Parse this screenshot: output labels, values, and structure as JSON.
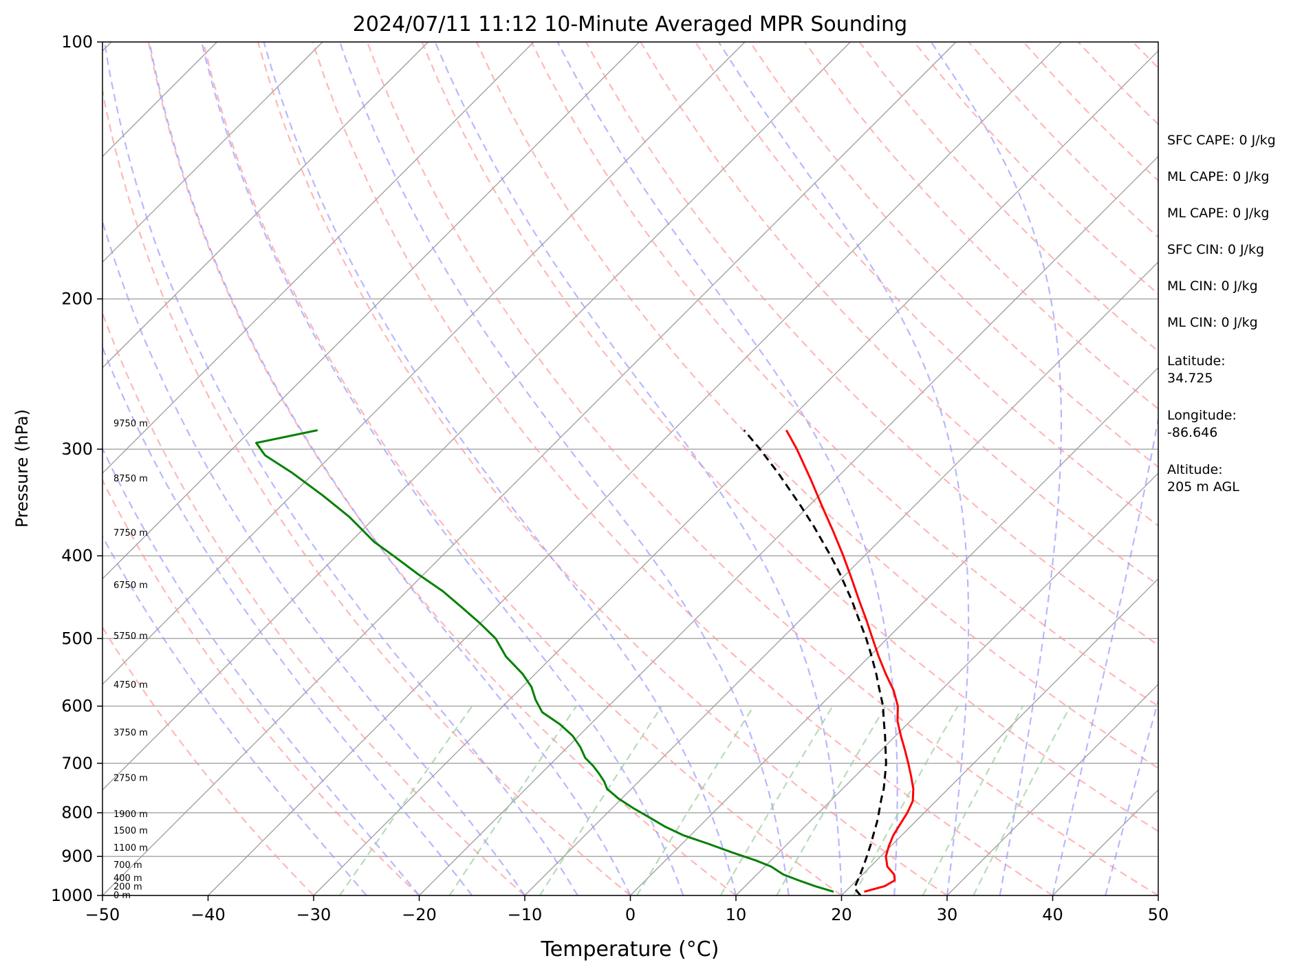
{
  "chart_data": {
    "type": "line",
    "title": "2024/07/11 11:12 10-Minute Averaged MPR Sounding",
    "xlabel": "Temperature (°C)",
    "ylabel": "Pressure (hPa)",
    "xlim": [
      -50,
      50
    ],
    "ylim": [
      1000,
      100
    ],
    "y_scale": "log",
    "grid": true,
    "x_ticks": [
      -50,
      -40,
      -30,
      -20,
      -10,
      0,
      10,
      20,
      30,
      40,
      50
    ],
    "x_tick_labels": [
      "−50",
      "−40",
      "−30",
      "−20",
      "−10",
      "0",
      "10",
      "20",
      "30",
      "40",
      "50"
    ],
    "y_ticks": [
      100,
      200,
      300,
      400,
      500,
      600,
      700,
      800,
      900,
      1000
    ],
    "y_tick_labels": [
      "100",
      "200",
      "300",
      "400",
      "500",
      "600",
      "700",
      "800",
      "900",
      "1000"
    ],
    "colors": {
      "temperature": "#ff0000",
      "dewpoint": "#008000",
      "parcel": "#000000",
      "dry_adiabat": "#ff9999",
      "moist_adiabat": "#9999ff",
      "mixing_ratio": "#99cc99",
      "isotherm": "#999999",
      "isobar": "#aaaaaa"
    },
    "series": [
      {
        "key": "temperature",
        "pressure": [
          990,
          975,
          960,
          945,
          925,
          900,
          875,
          850,
          825,
          800,
          775,
          750,
          725,
          700,
          675,
          650,
          625,
          600,
          575,
          550,
          525,
          500,
          475,
          450,
          425,
          400,
          375,
          350,
          325,
          300,
          285
        ],
        "temp": [
          21.8,
          23.2,
          23.6,
          23.0,
          21.6,
          20.5,
          19.8,
          19.2,
          18.8,
          18.4,
          17.8,
          16.7,
          15.3,
          13.8,
          12.2,
          10.5,
          8.8,
          7.4,
          5.5,
          3.2,
          0.9,
          -1.4,
          -3.8,
          -6.4,
          -9.1,
          -12.0,
          -15.2,
          -18.7,
          -22.4,
          -26.5,
          -29.3
        ]
      },
      {
        "key": "dewpoint",
        "pressure": [
          990,
          975,
          960,
          945,
          925,
          910,
          890,
          870,
          850,
          830,
          810,
          790,
          770,
          750,
          735,
          720,
          705,
          690,
          670,
          650,
          630,
          610,
          590,
          570,
          550,
          525,
          500,
          480,
          460,
          440,
          420,
          400,
          385,
          360,
          340,
          320,
          305,
          295,
          285
        ],
        "temp": [
          18.9,
          16.6,
          14.5,
          12.5,
          10.6,
          8.6,
          5.5,
          2.5,
          -0.7,
          -3.3,
          -5.6,
          -8.0,
          -10.3,
          -12.3,
          -13.3,
          -14.5,
          -15.8,
          -17.3,
          -18.8,
          -20.6,
          -22.9,
          -25.7,
          -27.5,
          -29.1,
          -31.2,
          -34.4,
          -37.1,
          -40.0,
          -43.2,
          -46.6,
          -50.6,
          -54.6,
          -57.8,
          -62.5,
          -67.0,
          -72.0,
          -76.3,
          -78.3,
          -73.7
        ]
      },
      {
        "key": "parcel",
        "pressure": [
          1000,
          980,
          950,
          920,
          900,
          870,
          850,
          820,
          800,
          770,
          750,
          720,
          700,
          670,
          650,
          620,
          600,
          570,
          550,
          520,
          500,
          470,
          450,
          420,
          400,
          370,
          350,
          320,
          300,
          285
        ],
        "temp": [
          21.8,
          20.5,
          19.9,
          19.2,
          18.7,
          17.9,
          17.3,
          16.4,
          15.7,
          14.6,
          13.9,
          12.6,
          11.7,
          10.1,
          9.0,
          7.2,
          6.0,
          3.8,
          2.3,
          -0.2,
          -2.0,
          -5.0,
          -7.1,
          -10.6,
          -13.2,
          -17.5,
          -20.7,
          -26.0,
          -30.0,
          -33.3
        ]
      }
    ],
    "height_labels": [
      {
        "text": "0 m",
        "pressure": 1000
      },
      {
        "text": "200 m",
        "pressure": 977
      },
      {
        "text": "400 m",
        "pressure": 955
      },
      {
        "text": "700 m",
        "pressure": 922
      },
      {
        "text": "1100 m",
        "pressure": 880
      },
      {
        "text": "1500 m",
        "pressure": 840
      },
      {
        "text": "1900 m",
        "pressure": 803
      },
      {
        "text": "2750 m",
        "pressure": 729
      },
      {
        "text": "3750 m",
        "pressure": 645
      },
      {
        "text": "4750 m",
        "pressure": 567
      },
      {
        "text": "5750 m",
        "pressure": 497
      },
      {
        "text": "6750 m",
        "pressure": 433
      },
      {
        "text": "7750 m",
        "pressure": 376
      },
      {
        "text": "8750 m",
        "pressure": 325
      },
      {
        "text": "9750 m",
        "pressure": 280
      }
    ]
  },
  "info_panel": {
    "lines": [
      "SFC CAPE: 0 J/kg",
      "ML CAPE: 0 J/kg",
      "ML CAPE: 0 J/kg",
      "SFC CIN: 0 J/kg",
      "ML CIN: 0 J/kg",
      "ML CIN: 0 J/kg",
      "Latitude:",
      "34.725",
      "Longitude:",
      "-86.646",
      "Altitude:",
      "205 m AGL"
    ]
  }
}
